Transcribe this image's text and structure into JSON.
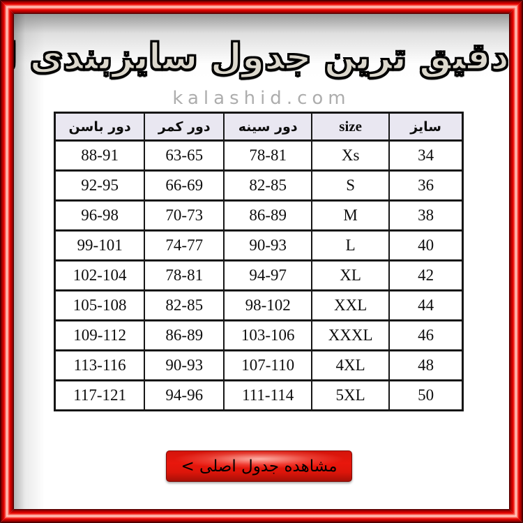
{
  "page": {
    "title": "دقیق ترین جدول سایزبندی لباس",
    "watermark": "kalashid.com",
    "button_label": "مشاهده جدول اصلی >"
  },
  "colors": {
    "frame_red": "#ec0400",
    "frame_dark": "#2e0000",
    "frame_highlight": "#ffd8d1",
    "header_bg": "#e9e7f1",
    "button_red": "#e8170d",
    "button_dark": "#a81007",
    "table_border": "#161616",
    "watermark_gray": "#adadad",
    "title_fill": "#dcd8cd"
  },
  "chart_data": {
    "type": "table",
    "direction": "rtl",
    "title": "دقیق ترین جدول سایزبندی لباس",
    "columns": [
      "سایز",
      "size",
      "دور سینه",
      "دور کمر",
      "دور باسن"
    ],
    "column_widths_percent": [
      18,
      19,
      21.5,
      19.5,
      22
    ],
    "rows": [
      [
        "34",
        "Xs",
        "78-81",
        "63-65",
        "88-91"
      ],
      [
        "36",
        "S",
        "82-85",
        "66-69",
        "92-95"
      ],
      [
        "38",
        "M",
        "86-89",
        "70-73",
        "96-98"
      ],
      [
        "40",
        "L",
        "90-93",
        "74-77",
        "99-101"
      ],
      [
        "42",
        "XL",
        "94-97",
        "78-81",
        "102-104"
      ],
      [
        "44",
        "XXL",
        "98-102",
        "82-85",
        "105-108"
      ],
      [
        "46",
        "XXXL",
        "103-106",
        "86-89",
        "109-112"
      ],
      [
        "48",
        "4XL",
        "107-110",
        "90-93",
        "113-116"
      ],
      [
        "50",
        "5XL",
        "111-114",
        "94-96",
        "117-121"
      ]
    ]
  }
}
